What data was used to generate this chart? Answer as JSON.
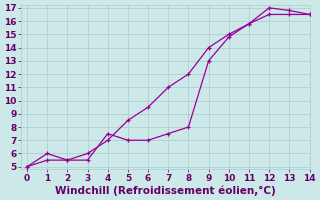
{
  "line1_x": [
    0,
    1,
    2,
    3,
    4,
    5,
    6,
    7,
    8,
    9,
    10,
    11,
    12,
    13,
    14
  ],
  "line1_y": [
    5,
    5.5,
    5.5,
    6.0,
    7.0,
    8.5,
    9.5,
    11.0,
    12.0,
    14.0,
    15.0,
    15.8,
    16.5,
    16.5,
    16.5
  ],
  "line2_x": [
    0,
    1,
    2,
    3,
    4,
    5,
    6,
    7,
    8,
    9,
    10,
    11,
    12,
    13,
    14
  ],
  "line2_y": [
    5,
    6.0,
    5.5,
    5.5,
    7.5,
    7.0,
    7.0,
    7.5,
    8.0,
    13.0,
    14.8,
    15.8,
    17.0,
    16.8,
    16.5
  ],
  "xlabel": "Windchill (Refroidissement éolien,°C)",
  "xlim": [
    -0.3,
    14
  ],
  "ylim": [
    4.8,
    17.2
  ],
  "yticks": [
    5,
    6,
    7,
    8,
    9,
    10,
    11,
    12,
    13,
    14,
    15,
    16,
    17
  ],
  "xticks": [
    0,
    1,
    2,
    3,
    4,
    5,
    6,
    7,
    8,
    9,
    10,
    11,
    12,
    13,
    14
  ],
  "line_color": "#990099",
  "bg_color": "#cce8e8",
  "grid_color": "#aacccc",
  "text_color": "#660066",
  "tick_fontsize": 6.5,
  "xlabel_fontsize": 7.5
}
